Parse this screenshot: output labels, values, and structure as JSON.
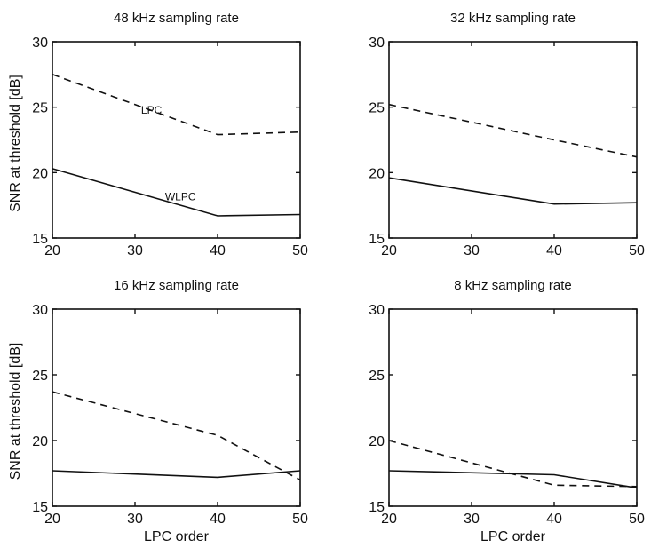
{
  "chart_data": [
    {
      "type": "line",
      "title": "48 kHz sampling rate",
      "xlabel": "",
      "ylabel": "SNR at threshold [dB]",
      "xlim": [
        20,
        50
      ],
      "ylim": [
        15,
        30
      ],
      "xticks": [
        "20",
        "30",
        "40",
        "50"
      ],
      "yticks": [
        "15",
        "20",
        "25",
        "30"
      ],
      "grid": false,
      "series": [
        {
          "name": "LPC",
          "style": "dashed",
          "x": [
            20,
            40,
            50
          ],
          "y": [
            27.5,
            22.9,
            23.1
          ]
        },
        {
          "name": "WLPC",
          "style": "solid",
          "x": [
            20,
            40,
            50
          ],
          "y": [
            20.3,
            16.7,
            16.8
          ]
        }
      ],
      "annotations": [
        {
          "text": "LPC",
          "x": 32,
          "y": 24.5
        },
        {
          "text": "WLPC",
          "x": 35.5,
          "y": 17.9
        }
      ]
    },
    {
      "type": "line",
      "title": "32 kHz sampling rate",
      "xlabel": "",
      "ylabel": "",
      "xlim": [
        20,
        50
      ],
      "ylim": [
        15,
        30
      ],
      "xticks": [
        "20",
        "30",
        "40",
        "50"
      ],
      "yticks": [
        "15",
        "20",
        "25",
        "30"
      ],
      "grid": false,
      "series": [
        {
          "style": "dashed",
          "x": [
            20,
            40,
            50
          ],
          "y": [
            25.2,
            22.5,
            21.2
          ]
        },
        {
          "style": "solid",
          "x": [
            20,
            40,
            50
          ],
          "y": [
            19.6,
            17.6,
            17.7
          ]
        }
      ],
      "annotations": []
    },
    {
      "type": "line",
      "title": "16 kHz sampling rate",
      "xlabel": "LPC order",
      "ylabel": "SNR at threshold [dB]",
      "xlim": [
        20,
        50
      ],
      "ylim": [
        15,
        30
      ],
      "xticks": [
        "20",
        "30",
        "40",
        "50"
      ],
      "yticks": [
        "15",
        "20",
        "25",
        "30"
      ],
      "grid": false,
      "series": [
        {
          "style": "dashed",
          "x": [
            20,
            40,
            50
          ],
          "y": [
            23.7,
            20.4,
            17.0
          ]
        },
        {
          "style": "solid",
          "x": [
            20,
            40,
            50
          ],
          "y": [
            17.7,
            17.2,
            17.7
          ]
        }
      ],
      "annotations": []
    },
    {
      "type": "line",
      "title": "8 kHz sampling rate",
      "xlabel": "LPC order",
      "ylabel": "",
      "xlim": [
        20,
        50
      ],
      "ylim": [
        15,
        30
      ],
      "xticks": [
        "20",
        "30",
        "40",
        "50"
      ],
      "yticks": [
        "15",
        "20",
        "25",
        "30"
      ],
      "grid": false,
      "series": [
        {
          "style": "dashed",
          "x": [
            20,
            40,
            50
          ],
          "y": [
            20.0,
            16.6,
            16.5
          ]
        },
        {
          "style": "solid",
          "x": [
            20,
            40,
            50
          ],
          "y": [
            17.7,
            17.4,
            16.4
          ]
        }
      ],
      "annotations": []
    }
  ]
}
